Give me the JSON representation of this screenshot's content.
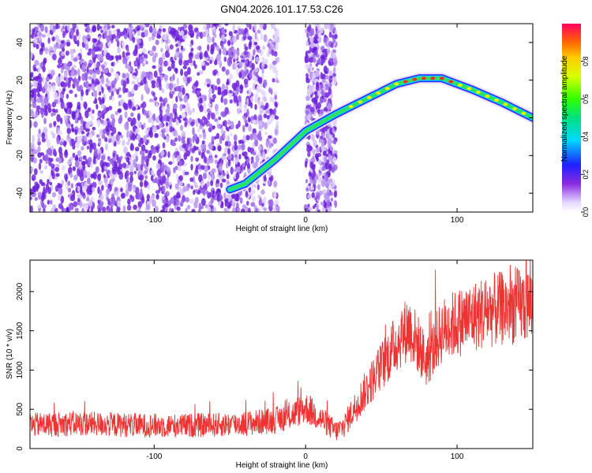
{
  "title": "GN04.2026.101.17.53.C26",
  "chart_data": [
    {
      "type": "heatmap",
      "name": "spectrogram",
      "xlabel": "Height of straight line (km)",
      "ylabel": "Frequency (Hz)",
      "xlim": [
        -182,
        150
      ],
      "ylim": [
        -50,
        50
      ],
      "xticks": [
        -100,
        0,
        100
      ],
      "yticks": [
        -40,
        -20,
        0,
        20,
        40
      ],
      "trace": {
        "description_points_x": [
          -50,
          -40,
          -20,
          0,
          20,
          40,
          60,
          75,
          90,
          110,
          130,
          150
        ],
        "description_points_y": [
          -38,
          -35,
          -22,
          -7,
          2,
          10,
          18,
          21,
          21,
          15,
          8,
          0
        ]
      },
      "colorbar": {
        "label": "Normalized spectral amplitude",
        "range": [
          0.0,
          1.0
        ],
        "ticks": [
          0.0,
          0.2,
          0.4,
          0.6,
          0.8
        ]
      }
    },
    {
      "type": "line",
      "name": "snr",
      "xlabel": "Height of straight line (km)",
      "ylabel": "SNR (10 * v/v)",
      "xlim": [
        -182,
        150
      ],
      "ylim": [
        0,
        2400
      ],
      "xticks": [
        -100,
        0,
        100
      ],
      "yticks": [
        0,
        500,
        1000,
        1500,
        2000
      ],
      "color": "#ee3333",
      "series": [
        {
          "name": "SNR",
          "x": [
            -182,
            -150,
            -120,
            -90,
            -60,
            -40,
            -20,
            -10,
            0,
            10,
            20,
            25,
            35,
            45,
            55,
            62,
            68,
            75,
            80,
            90,
            100,
            120,
            150
          ],
          "y": [
            300,
            320,
            300,
            290,
            300,
            320,
            360,
            420,
            520,
            380,
            220,
            280,
            600,
            900,
            1200,
            1400,
            1550,
            1300,
            1100,
            1500,
            1600,
            1750,
            1850
          ]
        }
      ]
    }
  ],
  "colors": {
    "spectro_low": "#c9b3f0",
    "spectro_mid": "#7a2ee0",
    "snr_line": "#ee3333"
  }
}
